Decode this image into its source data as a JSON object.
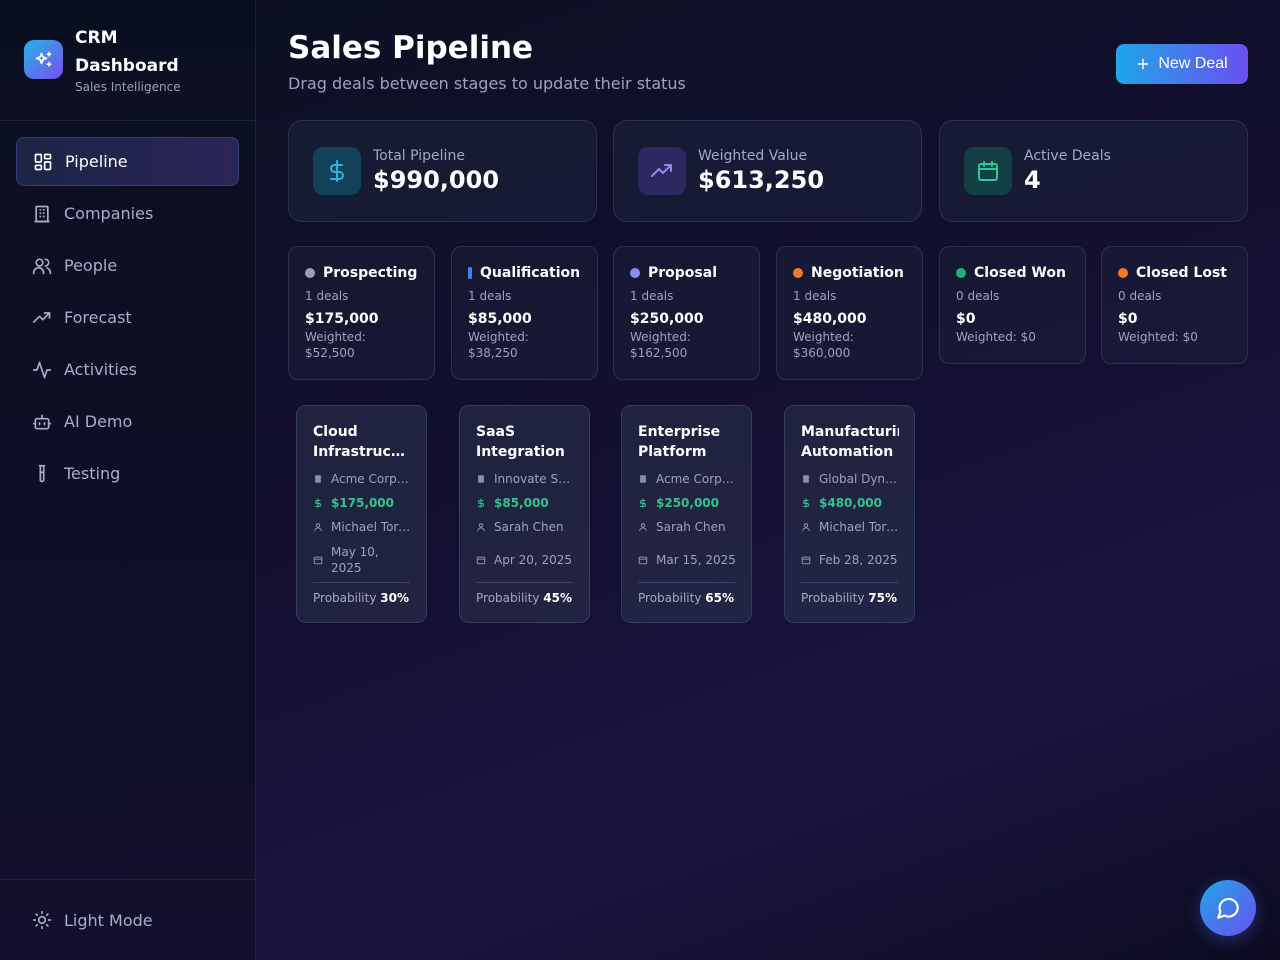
{
  "brand": {
    "title": "CRM Dashboard",
    "subtitle": "Sales Intelligence"
  },
  "nav": [
    {
      "label": "Pipeline",
      "icon": "grid-icon"
    },
    {
      "label": "Companies",
      "icon": "building-icon"
    },
    {
      "label": "People",
      "icon": "users-icon"
    },
    {
      "label": "Forecast",
      "icon": "trending-up-icon"
    },
    {
      "label": "Activities",
      "icon": "activity-icon"
    },
    {
      "label": "AI Demo",
      "icon": "bot-icon"
    },
    {
      "label": "Testing",
      "icon": "test-tube-icon"
    }
  ],
  "footer": {
    "theme_label": "Light Mode"
  },
  "header": {
    "title": "Sales Pipeline",
    "subtitle": "Drag deals between stages to update their status",
    "new_deal_label": "New Deal"
  },
  "stats": [
    {
      "label": "Total Pipeline",
      "value": "$990,000",
      "icon": "dollar-icon"
    },
    {
      "label": "Weighted Value",
      "value": "$613,250",
      "icon": "trending-up-icon"
    },
    {
      "label": "Active Deals",
      "value": "4",
      "icon": "calendar-icon"
    }
  ],
  "stages": [
    {
      "name": "Prospecting",
      "count": "1 deals",
      "amount": "$175,000",
      "weighted": "Weighted: $52,500",
      "color": "#9aa0b0"
    },
    {
      "name": "Qualification",
      "count": "1 deals",
      "amount": "$85,000",
      "weighted": "Weighted: $38,250",
      "color": "#3b82f6"
    },
    {
      "name": "Proposal",
      "count": "1 deals",
      "amount": "$250,000",
      "weighted": "Weighted: $162,500",
      "color": "#8b8cf0"
    },
    {
      "name": "Negotiation",
      "count": "1 deals",
      "amount": "$480,000",
      "weighted": "Weighted: $360,000",
      "color": "#f07a2a"
    },
    {
      "name": "Closed Won",
      "count": "0 deals",
      "amount": "$0",
      "weighted": "Weighted: $0",
      "color": "#22b07a"
    },
    {
      "name": "Closed Lost",
      "count": "0 deals",
      "amount": "$0",
      "weighted": "Weighted: $0",
      "color": "#f07a2a"
    }
  ],
  "deals": [
    {
      "title_line1": "Cloud",
      "title_line2": "Infrastructure",
      "company": "Acme Corporation",
      "amount": "$175,000",
      "owner": "Michael Torres",
      "date": "May 10, 2025",
      "probability_label": "Probability",
      "probability": "30%"
    },
    {
      "title_line1": "SaaS",
      "title_line2": "Integration",
      "company": "Innovate Solutions",
      "amount": "$85,000",
      "owner": "Sarah Chen",
      "date": "Apr 20, 2025",
      "probability_label": "Probability",
      "probability": "45%"
    },
    {
      "title_line1": "Enterprise",
      "title_line2": "Platform",
      "company": "Acme Corporation",
      "amount": "$250,000",
      "owner": "Sarah Chen",
      "date": "Mar 15, 2025",
      "probability_label": "Probability",
      "probability": "65%"
    },
    {
      "title_line1": "Manufacturing",
      "title_line2": "Automation",
      "company": "Global Dynamics",
      "amount": "$480,000",
      "owner": "Michael Torres",
      "date": "Feb 28, 2025",
      "probability_label": "Probability",
      "probability": "75%"
    }
  ]
}
